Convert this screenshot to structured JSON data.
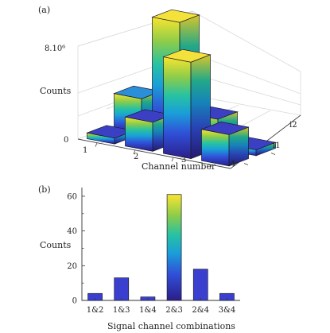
{
  "chart_data": [
    {
      "panel_label": "(a)",
      "type": "bar3d",
      "title": "",
      "xlabel": "Channel number",
      "ylabel": "Counts",
      "zlabel": "Counts",
      "categories": [
        "1",
        "2",
        "3",
        "4"
      ],
      "depth_categories": [
        "i1",
        "i2"
      ],
      "ytick_top_label": "8.10⁶",
      "yticks": [
        "0",
        "8.10⁶"
      ],
      "zlim": [
        0,
        8000000
      ],
      "series": [
        {
          "name": "i1",
          "values": [
            500000,
            2500000,
            8300000,
            2700000
          ]
        },
        {
          "name": "i2",
          "values": [
            3000000,
            10200000,
            2500000,
            500000
          ]
        }
      ],
      "colormap": [
        "#2b1e8a",
        "#3050d8",
        "#1a9fd8",
        "#27c2a2",
        "#8ccc4a",
        "#f9e52e"
      ],
      "grid": true
    },
    {
      "panel_label": "(b)",
      "type": "bar",
      "title": "",
      "xlabel": "Signal channel combinations",
      "ylabel": "Counts",
      "categories": [
        "1&2",
        "1&3",
        "1&4",
        "2&3",
        "2&4",
        "3&4"
      ],
      "values": [
        4,
        13,
        2,
        61,
        18,
        4
      ],
      "ylim": [
        0,
        65
      ],
      "yticks": [
        "0",
        "20",
        "40",
        "60"
      ],
      "colormap": [
        "#2b1e8a",
        "#3050d8",
        "#1a9fd8",
        "#27c2a2",
        "#8ccc4a",
        "#f9e52e"
      ],
      "grid": false
    }
  ]
}
